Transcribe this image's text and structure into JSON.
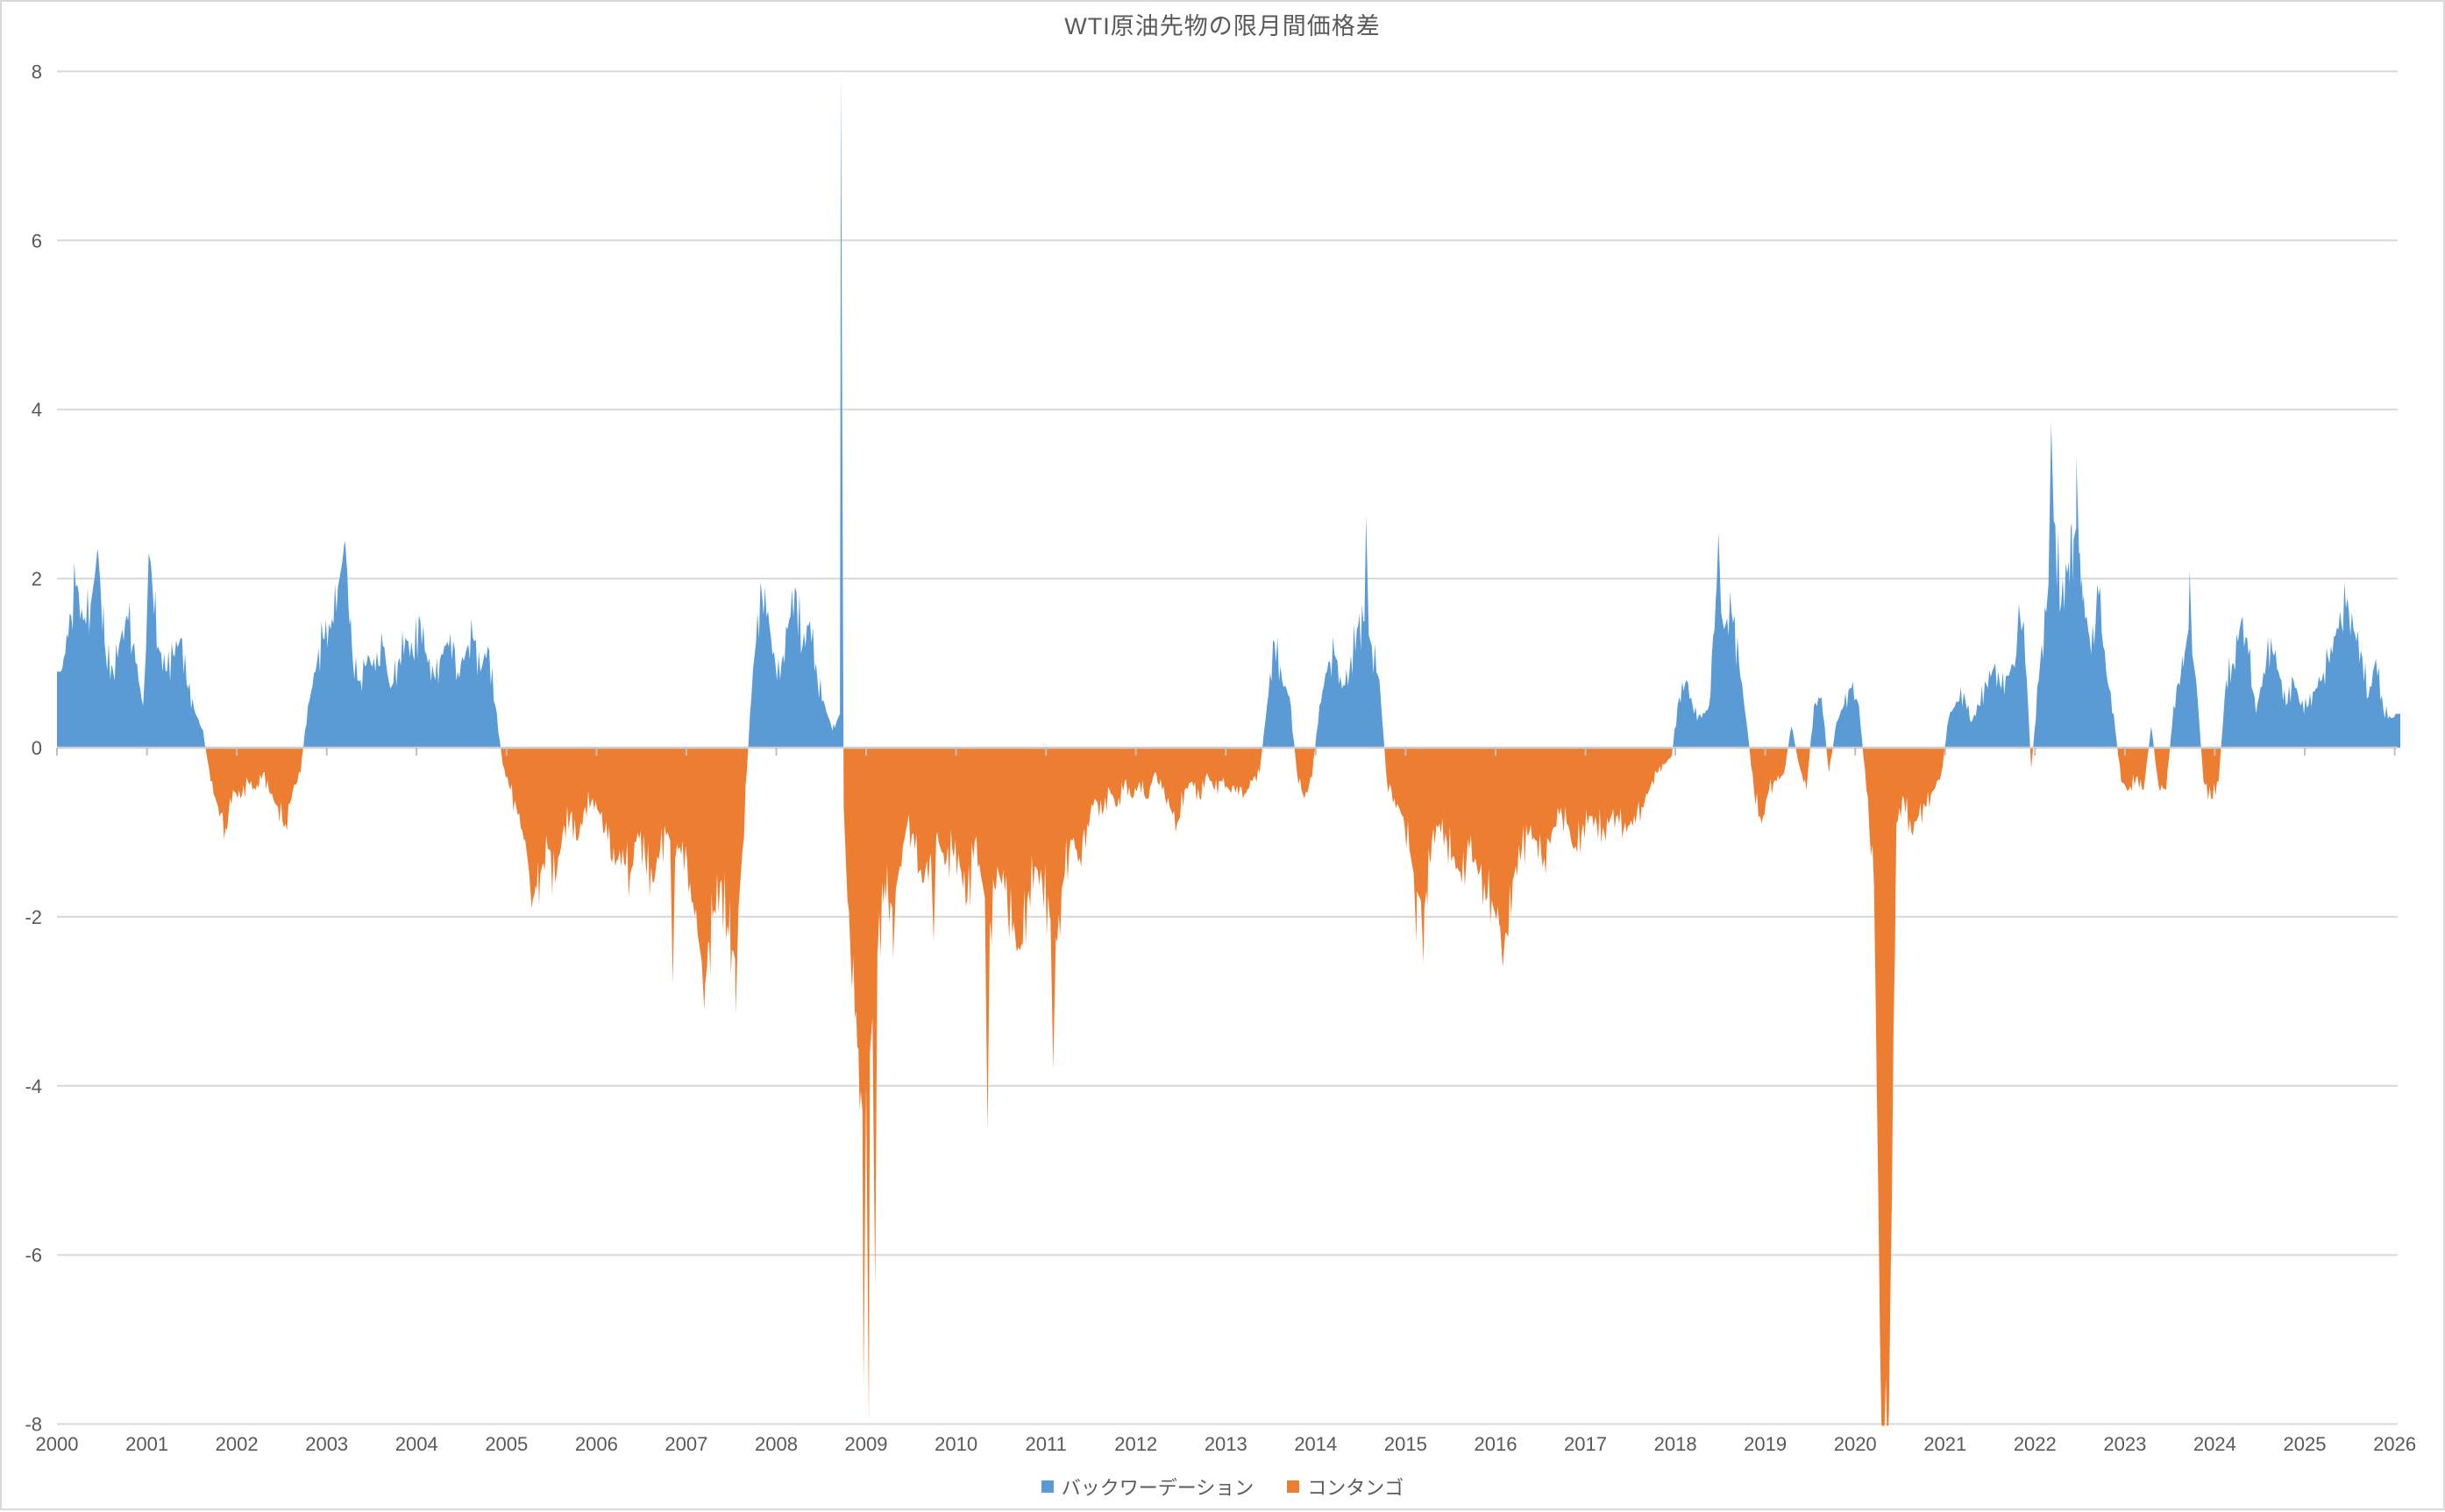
{
  "title": "WTI原油先物の限月間価格差",
  "colors": {
    "backwardation": "#5B9BD5",
    "contango": "#ED7D31",
    "gridline": "#D9D9D9",
    "zero_axis": "#CFCFCF",
    "tick": "#BFBFBF",
    "text": "#595959",
    "border": "#D9D9D9",
    "background": "#FFFFFF"
  },
  "legend": [
    {
      "label": "バックワーデーション",
      "color": "#5B9BD5"
    },
    {
      "label": "コンタンゴ",
      "color": "#ED7D31"
    }
  ],
  "chart_data": {
    "type": "bar",
    "title": "WTI原油先物の限月間価格差",
    "ylim": [
      -8,
      8
    ],
    "y_ticks": [
      8,
      6,
      4,
      2,
      0,
      -2,
      -4,
      -6,
      -8
    ],
    "x_ticks": [
      2000,
      2001,
      2002,
      2003,
      2004,
      2005,
      2006,
      2007,
      2008,
      2009,
      2010,
      2011,
      2012,
      2013,
      2014,
      2015,
      2016,
      2017,
      2018,
      2019,
      2020,
      2021,
      2022,
      2023,
      2024,
      2025,
      2026
    ],
    "grid": true,
    "legend_position": "bottom",
    "series": [
      {
        "name": "バックワーデーション",
        "color": "#5B9BD5",
        "rule": "positive spread values"
      },
      {
        "name": "コンタンゴ",
        "color": "#ED7D31",
        "rule": "negative spread values"
      }
    ],
    "resolution": "monthly estimates, Jan 2000 - Jan 2026 (USD/bbl)",
    "monthly_values": {
      "2000": [
        0.9,
        1.3,
        1.9,
        1.5,
        1.7,
        2.3,
        1.1,
        0.9,
        1.3,
        1.5,
        1.0,
        0.5
      ],
      "2001": [
        2.2,
        1.2,
        0.9,
        1.1,
        1.3,
        0.7,
        0.4,
        0.2,
        -0.4,
        -0.7,
        -0.95,
        -0.5
      ],
      "2002": [
        -0.6,
        -0.4,
        -0.5,
        -0.3,
        -0.55,
        -0.7,
        -0.9,
        -0.5,
        -0.3,
        0.5,
        0.9,
        1.3
      ],
      "2003": [
        1.4,
        1.9,
        2.4,
        1.0,
        0.8,
        1.1,
        0.9,
        1.2,
        0.7,
        1.0,
        1.3,
        1.1
      ],
      "2004": [
        1.5,
        1.0,
        0.8,
        1.1,
        1.35,
        0.9,
        1.1,
        1.3,
        0.9,
        1.2,
        0.5,
        -0.2
      ],
      "2005": [
        -0.5,
        -0.8,
        -1.1,
        -1.8,
        -1.5,
        -1.2,
        -1.6,
        -1.0,
        -0.8,
        -1.1,
        -0.7,
        -0.6
      ],
      "2006": [
        -0.8,
        -1.1,
        -1.4,
        -1.2,
        -1.5,
        -1.0,
        -1.3,
        -1.6,
        -1.2,
        -1.0,
        -1.3,
        -1.1
      ],
      "2007": [
        -1.6,
        -2.2,
        -2.8,
        -2.0,
        -1.6,
        -2.1,
        -2.5,
        -1.2,
        0.4,
        1.6,
        1.9,
        1.1
      ],
      "2008": [
        0.8,
        1.4,
        1.9,
        1.2,
        1.5,
        0.8,
        0.5,
        0.2,
        0.4,
        -1.8,
        -3.2,
        -4.3
      ],
      "2009": [
        -3.6,
        -2.4,
        -1.6,
        -1.9,
        -1.4,
        -0.9,
        -1.2,
        -1.6,
        -1.3,
        -1.0,
        -1.4,
        -1.2
      ],
      "2010": [
        -1.4,
        -1.8,
        -1.1,
        -1.6,
        -2.1,
        -1.4,
        -1.7,
        -2.2,
        -2.4,
        -1.8,
        -1.4,
        -1.6
      ],
      "2011": [
        -2.0,
        -2.3,
        -1.5,
        -1.1,
        -1.3,
        -0.9,
        -0.6,
        -0.8,
        -0.5,
        -0.7,
        -0.4,
        -0.6
      ],
      "2012": [
        -0.4,
        -0.6,
        -0.3,
        -0.5,
        -0.7,
        -0.9,
        -0.5,
        -0.4,
        -0.6,
        -0.3,
        -0.5,
        -0.4
      ],
      "2013": [
        -0.5,
        -0.45,
        -0.55,
        -0.4,
        -0.3,
        0.5,
        1.25,
        0.8,
        0.6,
        -0.3,
        -0.6,
        -0.35
      ],
      "2014": [
        0.5,
        0.9,
        1.1,
        0.7,
        0.9,
        1.4,
        1.5,
        1.2,
        0.8,
        -0.4,
        -0.6,
        -0.8
      ],
      "2015": [
        -1.2,
        -1.7,
        -1.9,
        -1.1,
        -0.9,
        -1.1,
        -1.3,
        -1.6,
        -1.2,
        -1.4,
        -1.6,
        -1.8
      ],
      "2016": [
        -2.1,
        -2.2,
        -1.5,
        -1.2,
        -1.0,
        -1.1,
        -1.3,
        -1.0,
        -0.8,
        -0.9,
        -1.2,
        -1.0
      ],
      "2017": [
        -0.8,
        -0.9,
        -1.0,
        -0.8,
        -0.9,
        -1.0,
        -0.8,
        -0.7,
        -0.5,
        -0.3,
        -0.2,
        -0.1
      ],
      "2018": [
        0.6,
        0.8,
        0.4,
        0.35,
        0.5,
        1.9,
        1.4,
        1.6,
        1.0,
        0.3,
        -0.5,
        -0.9
      ],
      "2019": [
        -0.5,
        -0.4,
        -0.3,
        0.25,
        -0.2,
        -0.5,
        0.5,
        0.6,
        -0.3,
        0.3,
        0.5,
        0.7
      ],
      "2020": [
        0.5,
        -0.5,
        -1.6,
        -8.0,
        -7.85,
        -0.9,
        -0.6,
        -1.0,
        -0.8,
        -0.7,
        -0.5,
        -0.3
      ],
      "2021": [
        0.35,
        0.55,
        0.65,
        0.3,
        0.5,
        0.75,
        0.95,
        0.7,
        0.85,
        1.1,
        1.5,
        -0.25
      ],
      "2022": [
        0.8,
        1.6,
        2.7,
        1.7,
        2.2,
        2.6,
        1.8,
        1.1,
        1.8,
        0.9,
        0.4,
        -0.4
      ],
      "2023": [
        -0.5,
        -0.35,
        -0.5,
        0.25,
        -0.45,
        -0.5,
        0.5,
        0.9,
        1.4,
        0.8,
        -0.4,
        -0.6
      ],
      "2024": [
        -0.4,
        0.8,
        1.0,
        1.5,
        1.1,
        0.4,
        0.9,
        1.3,
        0.9,
        0.5,
        0.8,
        0.5
      ],
      "2025": [
        0.5,
        0.7,
        0.9,
        1.2,
        1.4,
        1.65,
        1.4,
        1.15,
        0.6,
        1.05,
        0.45,
        0.35
      ],
      "2026": [
        0.4
      ]
    },
    "spikes": [
      {
        "t": 2000.45,
        "v": 2.35
      },
      {
        "t": 2001.02,
        "v": 2.3
      },
      {
        "t": 2003.2,
        "v": 2.45
      },
      {
        "t": 2005.28,
        "v": -1.9
      },
      {
        "t": 2006.85,
        "v": -2.8
      },
      {
        "t": 2007.2,
        "v": -3.1
      },
      {
        "t": 2007.55,
        "v": -3.15
      },
      {
        "t": 2008.72,
        "v": 8.0
      },
      {
        "t": 2008.97,
        "v": -7.6
      },
      {
        "t": 2009.03,
        "v": -8.0
      },
      {
        "t": 2009.1,
        "v": -6.4
      },
      {
        "t": 2009.3,
        "v": -2.5
      },
      {
        "t": 2009.75,
        "v": -2.3
      },
      {
        "t": 2010.35,
        "v": -4.55
      },
      {
        "t": 2011.08,
        "v": -3.8
      },
      {
        "t": 2014.56,
        "v": 2.75
      },
      {
        "t": 2015.12,
        "v": -2.3
      },
      {
        "t": 2015.2,
        "v": -2.55
      },
      {
        "t": 2016.08,
        "v": -2.6
      },
      {
        "t": 2018.48,
        "v": 2.55
      },
      {
        "t": 2021.82,
        "v": 1.7
      },
      {
        "t": 2022.18,
        "v": 3.85
      },
      {
        "t": 2022.46,
        "v": 3.45
      },
      {
        "t": 2023.72,
        "v": 2.1
      }
    ]
  }
}
